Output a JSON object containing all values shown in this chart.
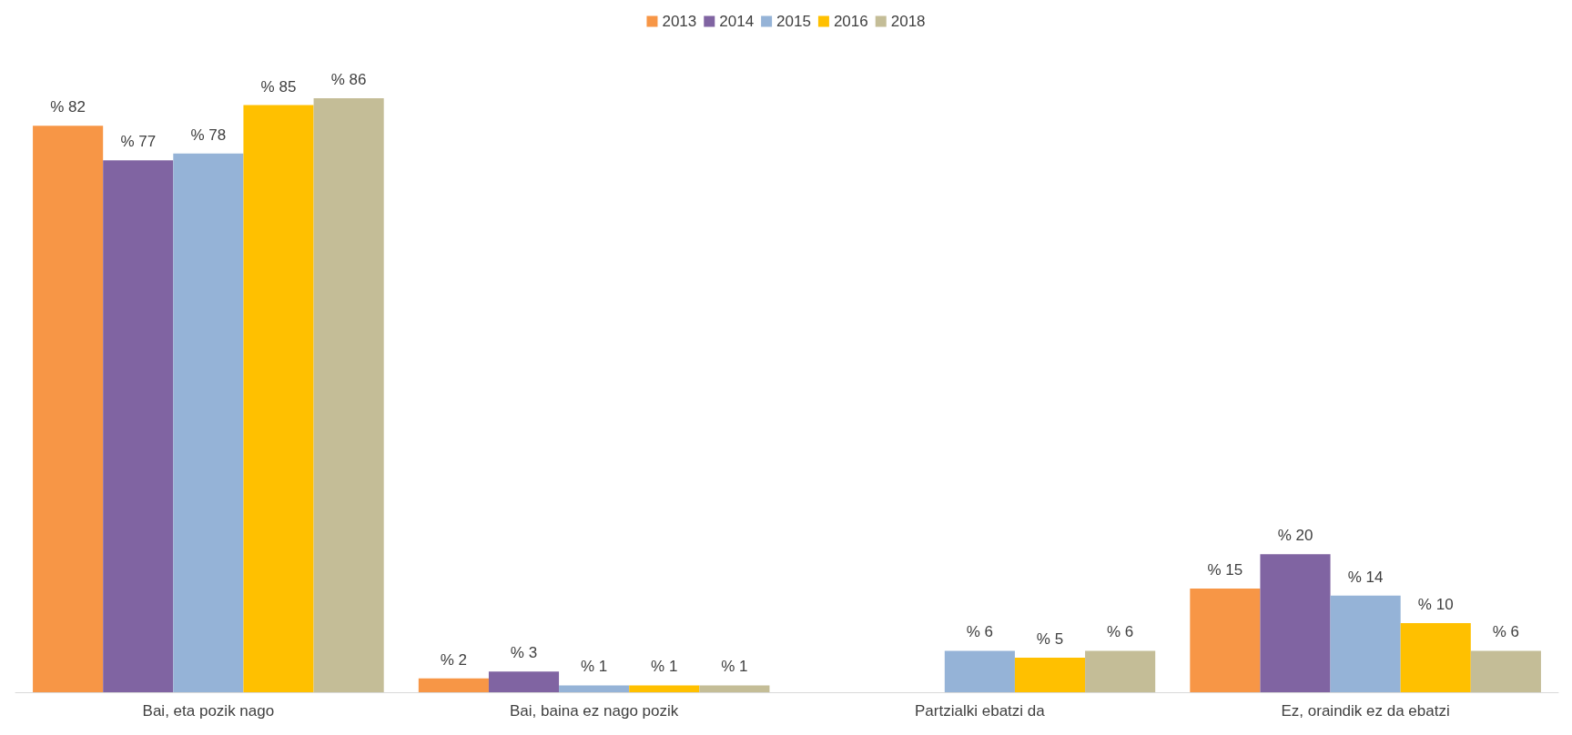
{
  "chart_data": {
    "type": "bar",
    "categories": [
      "Bai, eta pozik nago",
      "Bai, baina ez nago pozik",
      "Partzialki ebatzi da",
      "Ez, oraindik ez da ebatzi"
    ],
    "series": [
      {
        "name": "2013",
        "color": "#f79646",
        "values": [
          82,
          2,
          null,
          15
        ],
        "value_labels": [
          "% 82",
          "% 2",
          null,
          "% 15"
        ]
      },
      {
        "name": "2014",
        "color": "#8064a2",
        "values": [
          77,
          3,
          null,
          20
        ],
        "value_labels": [
          "% 77",
          "% 3",
          null,
          "% 20"
        ]
      },
      {
        "name": "2015",
        "color": "#95b3d7",
        "values": [
          78,
          1,
          6,
          14
        ],
        "value_labels": [
          "% 78",
          "% 1",
          "% 6",
          "% 14"
        ]
      },
      {
        "name": "2016",
        "color": "#ffc000",
        "values": [
          85,
          1,
          5,
          10
        ],
        "value_labels": [
          "% 85",
          "% 1",
          "% 5",
          "% 10"
        ]
      },
      {
        "name": "2018",
        "color": "#c4bd97",
        "values": [
          86,
          1,
          6,
          6
        ],
        "value_labels": [
          "% 86",
          "% 1",
          "% 6",
          "% 6"
        ]
      }
    ],
    "legend": "top"
  }
}
